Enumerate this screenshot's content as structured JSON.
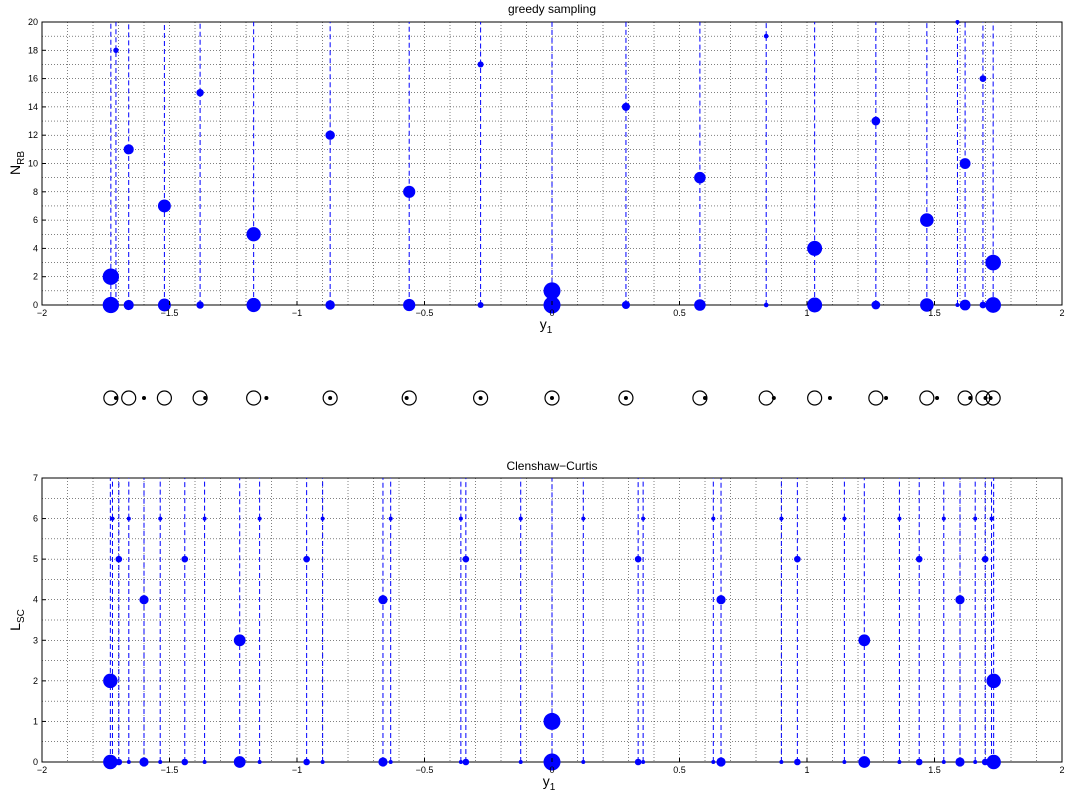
{
  "chart_data": [
    {
      "type": "stem",
      "title": "greedy sampling",
      "xlabel": {
        "main": "y",
        "sub": "1"
      },
      "ylabel": {
        "main": "N",
        "sub": "RB"
      },
      "xlim": [
        -2,
        2
      ],
      "ylim": [
        0,
        20
      ],
      "x_ticks": [
        -2,
        -1.5,
        -1,
        -0.5,
        0,
        0.5,
        1,
        1.5,
        2
      ],
      "x_tick_labels": [
        "−2",
        "−1.5",
        "−1",
        "−0.5",
        "0",
        "0.5",
        "1",
        "1.5",
        "2"
      ],
      "y_ticks": [
        0,
        2,
        4,
        6,
        8,
        10,
        12,
        14,
        16,
        18,
        20
      ],
      "y_tick_labels": [
        "0",
        "2",
        "4",
        "6",
        "8",
        "10",
        "12",
        "14",
        "16",
        "18",
        "20"
      ],
      "grid": true,
      "marker_color": "#0000ff",
      "series": [
        {
          "x": [
            -1.73,
            -1.71,
            -1.66,
            -1.52,
            -1.38,
            -1.17,
            -0.87,
            -0.56,
            -0.28,
            0.0,
            0.29,
            0.58,
            0.84,
            1.03,
            1.27,
            1.47,
            1.59,
            1.62,
            1.69,
            1.73
          ],
          "y": [
            2,
            18,
            11,
            7,
            15,
            5,
            12,
            8,
            17,
            1,
            14,
            9,
            19,
            4,
            13,
            6,
            20,
            10,
            16,
            3
          ]
        }
      ]
    },
    {
      "type": "stem",
      "title": "Clenshaw−Curtis",
      "xlabel": {
        "main": "y",
        "sub": "1"
      },
      "ylabel": {
        "main": "L",
        "sub": "SC"
      },
      "xlim": [
        -2,
        2
      ],
      "ylim": [
        0,
        7
      ],
      "x_ticks": [
        -2,
        -1.5,
        -1,
        -0.5,
        0,
        0.5,
        1,
        1.5,
        2
      ],
      "x_tick_labels": [
        "−2",
        "−1.5",
        "−1",
        "−0.5",
        "0",
        "0.5",
        "1",
        "1.5",
        "2"
      ],
      "y_ticks": [
        0,
        1,
        2,
        3,
        4,
        5,
        6,
        7
      ],
      "y_tick_labels": [
        "0",
        "1",
        "2",
        "3",
        "4",
        "5",
        "6",
        "7"
      ],
      "grid": true,
      "marker_color": "#0000ff",
      "series": [
        {
          "x": [
            -1.732,
            1.732,
            0.0,
            -1.2247,
            1.2247,
            -1.6,
            -0.6629,
            0.6629,
            1.6,
            -1.6987,
            -1.4401,
            -0.9622,
            -0.3378,
            0.3378,
            0.9622,
            1.4401,
            1.6987,
            -1.7237,
            -1.6596,
            -1.5364,
            -1.3624,
            -1.1466,
            -0.8995,
            -0.6326,
            -0.3574,
            -0.1227,
            0.1227,
            0.3574,
            0.6326,
            0.8995,
            1.1466,
            1.3624,
            1.5364,
            1.6596,
            1.7237
          ],
          "y": [
            2,
            2,
            1,
            3,
            3,
            4,
            4,
            4,
            4,
            5,
            5,
            5,
            5,
            5,
            5,
            5,
            5,
            6,
            6,
            6,
            6,
            6,
            6,
            6,
            6,
            6,
            6,
            6,
            6,
            6,
            6,
            6,
            6,
            6,
            6
          ]
        }
      ]
    },
    {
      "type": "scatter",
      "description_free": true,
      "xlim": [
        -2,
        2
      ],
      "series": [
        {
          "marker": "open-circle",
          "x": [
            -1.73,
            -1.66,
            -1.52,
            -1.38,
            -1.17,
            -0.87,
            -0.56,
            -0.28,
            0.0,
            0.29,
            0.58,
            0.84,
            1.03,
            1.27,
            1.47,
            1.62,
            1.69,
            1.73
          ]
        },
        {
          "marker": "dot",
          "x": [
            -1.71,
            -1.6,
            -1.36,
            -1.12,
            -0.87,
            -0.57,
            -0.28,
            0.0,
            0.29,
            0.6,
            0.87,
            1.09,
            1.31,
            1.51,
            1.64,
            1.7,
            1.72
          ]
        }
      ]
    }
  ]
}
